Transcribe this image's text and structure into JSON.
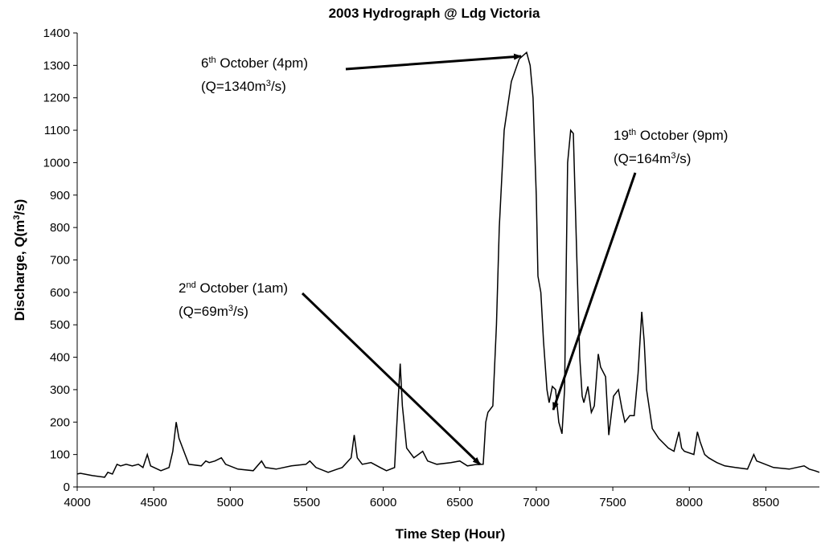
{
  "chart_data": {
    "type": "line",
    "title": "2003 Hydrograph @ Ldg Victoria",
    "xlabel": "Time Step (Hour)",
    "ylabel": [
      {
        "text": "Discharge, Q(m"
      },
      {
        "text": "3",
        "sup": true
      },
      {
        "text": "/s)"
      }
    ],
    "color": "#000000",
    "x": [
      4000,
      4021,
      4100,
      4179,
      4200,
      4230,
      4260,
      4284,
      4320,
      4360,
      4400,
      4430,
      4458,
      4480,
      4547,
      4600,
      4625,
      4647,
      4665,
      4705,
      4730,
      4811,
      4840,
      4863,
      4900,
      4942,
      4970,
      5050,
      5150,
      5205,
      5230,
      5300,
      5400,
      5495,
      5520,
      5560,
      5640,
      5700,
      5732,
      5790,
      5810,
      5830,
      5863,
      5920,
      5980,
      6021,
      6074,
      6095,
      6111,
      6125,
      6153,
      6200,
      6258,
      6290,
      6350,
      6442,
      6500,
      6550,
      6600,
      6653,
      6670,
      6684,
      6716,
      6740,
      6758,
      6790,
      6837,
      6889,
      6937,
      6960,
      6979,
      7000,
      7011,
      7030,
      7047,
      7070,
      7084,
      7105,
      7126,
      7147,
      7168,
      7185,
      7205,
      7225,
      7242,
      7265,
      7284,
      7300,
      7311,
      7337,
      7360,
      7379,
      7405,
      7420,
      7453,
      7474,
      7505,
      7537,
      7560,
      7579,
      7611,
      7640,
      7665,
      7689,
      7705,
      7721,
      7758,
      7800,
      7863,
      7900,
      7932,
      7950,
      7968,
      8030,
      8053,
      8070,
      8100,
      8126,
      8180,
      8232,
      8300,
      8380,
      8421,
      8440,
      8468,
      8550,
      8653,
      8700,
      8750,
      8784,
      8820,
      8850
    ],
    "values": [
      40,
      42,
      35,
      30,
      45,
      40,
      70,
      65,
      70,
      65,
      70,
      60,
      100,
      65,
      50,
      60,
      110,
      200,
      150,
      100,
      70,
      65,
      80,
      75,
      80,
      90,
      70,
      55,
      50,
      80,
      60,
      55,
      65,
      70,
      80,
      60,
      45,
      55,
      60,
      90,
      160,
      90,
      70,
      75,
      60,
      50,
      60,
      250,
      380,
      250,
      120,
      90,
      110,
      80,
      70,
      75,
      80,
      65,
      69,
      70,
      200,
      230,
      250,
      500,
      800,
      1100,
      1250,
      1320,
      1340,
      1300,
      1200,
      900,
      650,
      600,
      450,
      300,
      260,
      310,
      300,
      200,
      164,
      300,
      1000,
      1100,
      1090,
      700,
      400,
      280,
      260,
      310,
      230,
      250,
      410,
      370,
      340,
      160,
      280,
      300,
      240,
      200,
      220,
      220,
      350,
      540,
      450,
      300,
      180,
      150,
      120,
      110,
      170,
      120,
      110,
      100,
      170,
      140,
      100,
      90,
      75,
      65,
      60,
      55,
      100,
      80,
      75,
      60,
      55,
      60,
      65,
      55,
      50,
      45
    ],
    "xlim": [
      4000,
      8850
    ],
    "xticks": [
      4000,
      4500,
      5000,
      5500,
      6000,
      6500,
      7000,
      7500,
      8000,
      8500
    ],
    "ylim": [
      0,
      1400
    ],
    "yticks": [
      0,
      100,
      200,
      300,
      400,
      500,
      600,
      700,
      800,
      900,
      1000,
      1100,
      1200,
      1300,
      1400
    ],
    "grid": false,
    "annotations": [
      {
        "lines": [
          [
            {
              "text": "6"
            },
            {
              "text": "th",
              "sup": true
            },
            {
              "text": " October (4pm)"
            }
          ],
          [
            {
              "text": "(Q=1340m"
            },
            {
              "text": "3",
              "sup": true
            },
            {
              "text": "/s)"
            }
          ]
        ]
      },
      {
        "lines": [
          [
            {
              "text": "19"
            },
            {
              "text": "th",
              "sup": true
            },
            {
              "text": " October (9pm)"
            }
          ],
          [
            {
              "text": "(Q=164m"
            },
            {
              "text": "3",
              "sup": true
            },
            {
              "text": "/s)"
            }
          ]
        ]
      },
      {
        "lines": [
          [
            {
              "text": "2"
            },
            {
              "text": "nd",
              "sup": true
            },
            {
              "text": " October (1am)"
            }
          ],
          [
            {
              "text": "(Q=69m"
            },
            {
              "text": "3",
              "sup": true
            },
            {
              "text": "/s)"
            }
          ]
        ]
      }
    ]
  }
}
